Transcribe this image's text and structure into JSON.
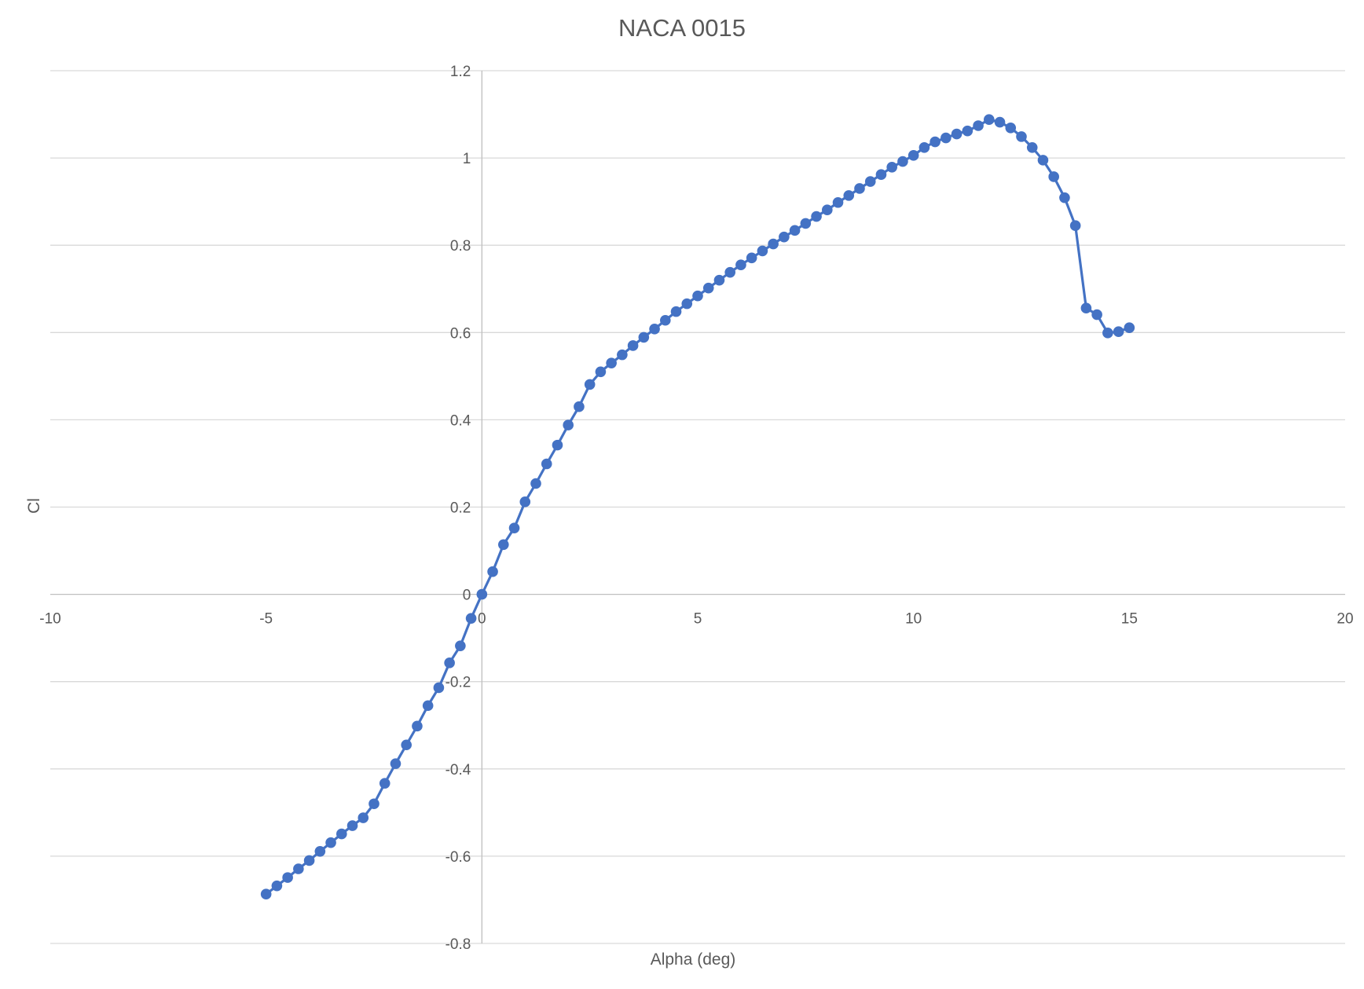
{
  "chart_data": {
    "type": "scatter",
    "title": "NACA 0015",
    "xlabel": "Alpha (deg)",
    "ylabel": "Cl",
    "xlim": [
      -10,
      20
    ],
    "ylim": [
      -0.8,
      1.2
    ],
    "x_ticks": [
      -10,
      -5,
      0,
      5,
      10,
      15,
      20
    ],
    "y_ticks": [
      -0.8,
      -0.6,
      -0.4,
      -0.2,
      0,
      0.2,
      0.4,
      0.6,
      0.8,
      1,
      1.2
    ],
    "grid": "horizontal",
    "lines": true,
    "colors": {
      "series": "#4472c4",
      "grid": "#d9d9d9",
      "text": "#595959"
    },
    "series": [
      {
        "x": [
          -5,
          -4.75,
          -4.5,
          -4.25,
          -4,
          -3.75,
          -3.5,
          -3.25,
          -3,
          -2.75,
          -2.5,
          -2.25,
          -2,
          -1.75,
          -1.5,
          -1.25,
          -1,
          -0.75,
          -0.5,
          -0.25,
          0,
          0.25,
          0.5,
          0.75,
          1,
          1.25,
          1.5,
          1.75,
          2,
          2.25,
          2.5,
          2.75,
          3,
          3.25,
          3.5,
          3.75,
          4,
          4.25,
          4.5,
          4.75,
          5,
          5.25,
          5.5,
          5.75,
          6,
          6.25,
          6.5,
          6.75,
          7,
          7.25,
          7.5,
          7.75,
          8,
          8.25,
          8.5,
          8.75,
          9,
          9.25,
          9.5,
          9.75,
          10,
          10.25,
          10.5,
          10.75,
          11,
          11.25,
          11.5,
          11.75,
          12,
          12.25,
          12.5,
          12.75,
          13,
          13.25,
          13.5,
          13.75,
          14,
          14.25,
          14.5,
          14.75,
          15
        ],
        "values": [
          -0.687,
          -0.668,
          -0.649,
          -0.629,
          -0.61,
          -0.589,
          -0.569,
          -0.549,
          -0.53,
          -0.512,
          -0.48,
          -0.433,
          -0.388,
          -0.345,
          -0.302,
          -0.255,
          -0.214,
          -0.157,
          -0.118,
          -0.055,
          0.0,
          0.052,
          0.114,
          0.152,
          0.212,
          0.254,
          0.299,
          0.342,
          0.388,
          0.43,
          0.481,
          0.51,
          0.53,
          0.549,
          0.57,
          0.589,
          0.608,
          0.628,
          0.648,
          0.666,
          0.684,
          0.702,
          0.72,
          0.738,
          0.755,
          0.771,
          0.787,
          0.803,
          0.819,
          0.834,
          0.85,
          0.866,
          0.881,
          0.898,
          0.914,
          0.93,
          0.946,
          0.962,
          0.979,
          0.992,
          1.006,
          1.024,
          1.037,
          1.046,
          1.055,
          1.062,
          1.074,
          1.088,
          1.082,
          1.069,
          1.049,
          1.024,
          0.995,
          0.957,
          0.909,
          0.845,
          0.656,
          0.641,
          0.599,
          0.602,
          0.611
        ]
      }
    ]
  }
}
